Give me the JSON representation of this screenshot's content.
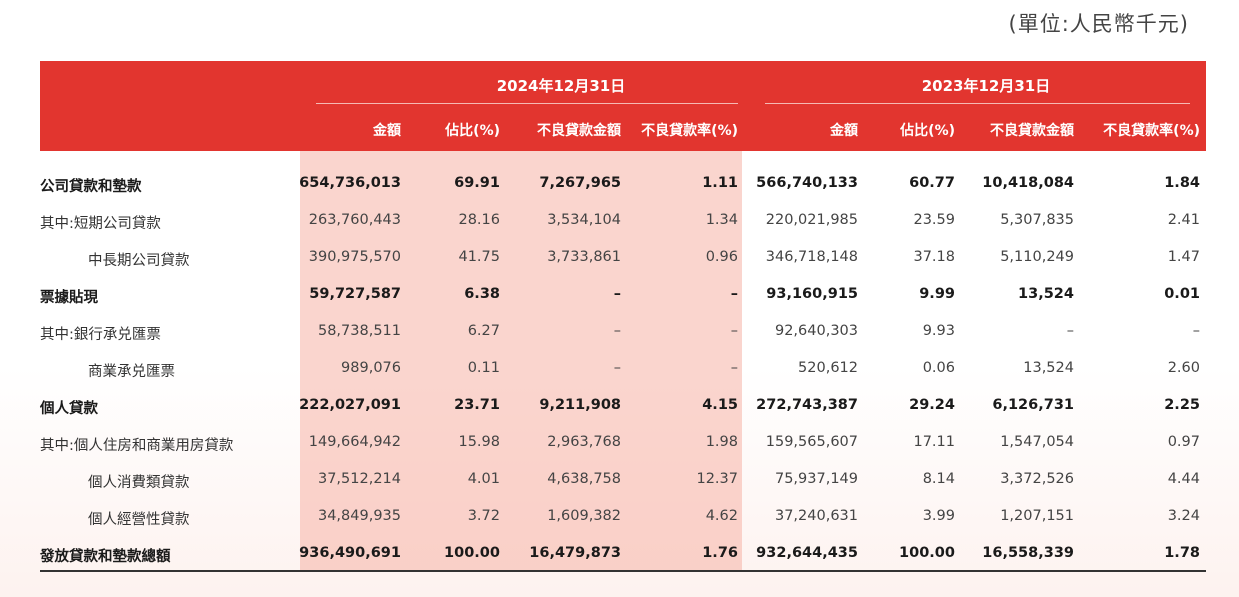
{
  "unit": "(單位:人民幣千元)",
  "periods": [
    "2024年12月31日",
    "2023年12月31日"
  ],
  "columns": [
    "金額",
    "佔比(%)",
    "不良貸款金額",
    "不良貸款率(%)",
    "金額",
    "佔比(%)",
    "不良貸款金額",
    "不良貸款率(%)"
  ],
  "rows": [
    {
      "label": "公司貸款和墊款",
      "bold": true,
      "cells": [
        "654,736,013",
        "69.91",
        "7,267,965",
        "1.11",
        "566,740,133",
        "60.77",
        "10,418,084",
        "1.84"
      ]
    },
    {
      "label": "其中:短期公司貸款",
      "bold": false,
      "cells": [
        "263,760,443",
        "28.16",
        "3,534,104",
        "1.34",
        "220,021,985",
        "23.59",
        "5,307,835",
        "2.41"
      ]
    },
    {
      "label": "中長期公司貸款",
      "bold": false,
      "indent": true,
      "cells": [
        "390,975,570",
        "41.75",
        "3,733,861",
        "0.96",
        "346,718,148",
        "37.18",
        "5,110,249",
        "1.47"
      ]
    },
    {
      "label": "票據貼現",
      "bold": true,
      "cells": [
        "59,727,587",
        "6.38",
        "–",
        "–",
        "93,160,915",
        "9.99",
        "13,524",
        "0.01"
      ]
    },
    {
      "label": "其中:銀行承兑匯票",
      "bold": false,
      "cells": [
        "58,738,511",
        "6.27",
        "–",
        "–",
        "92,640,303",
        "9.93",
        "–",
        "–"
      ]
    },
    {
      "label": "商業承兑匯票",
      "bold": false,
      "indent": true,
      "cells": [
        "989,076",
        "0.11",
        "–",
        "–",
        "520,612",
        "0.06",
        "13,524",
        "2.60"
      ]
    },
    {
      "label": "個人貸款",
      "bold": true,
      "cells": [
        "222,027,091",
        "23.71",
        "9,211,908",
        "4.15",
        "272,743,387",
        "29.24",
        "6,126,731",
        "2.25"
      ]
    },
    {
      "label": "其中:個人住房和商業用房貸款",
      "bold": false,
      "cells": [
        "149,664,942",
        "15.98",
        "2,963,768",
        "1.98",
        "159,565,607",
        "17.11",
        "1,547,054",
        "0.97"
      ]
    },
    {
      "label": "個人消費類貸款",
      "bold": false,
      "indent": true,
      "cells": [
        "37,512,214",
        "4.01",
        "4,638,758",
        "12.37",
        "75,937,149",
        "8.14",
        "3,372,526",
        "4.44"
      ]
    },
    {
      "label": "個人經營性貸款",
      "bold": false,
      "indent": true,
      "cells": [
        "34,849,935",
        "3.72",
        "1,609,382",
        "4.62",
        "37,240,631",
        "3.99",
        "1,207,151",
        "3.24"
      ]
    },
    {
      "label": "發放貸款和墊款總額",
      "bold": true,
      "cells": [
        "936,490,691",
        "100.00",
        "16,479,873",
        "1.76",
        "932,644,435",
        "100.00",
        "16,558,339",
        "1.78"
      ]
    }
  ],
  "colors": {
    "header": "#e2352f",
    "shade": "#f5b2a6"
  }
}
